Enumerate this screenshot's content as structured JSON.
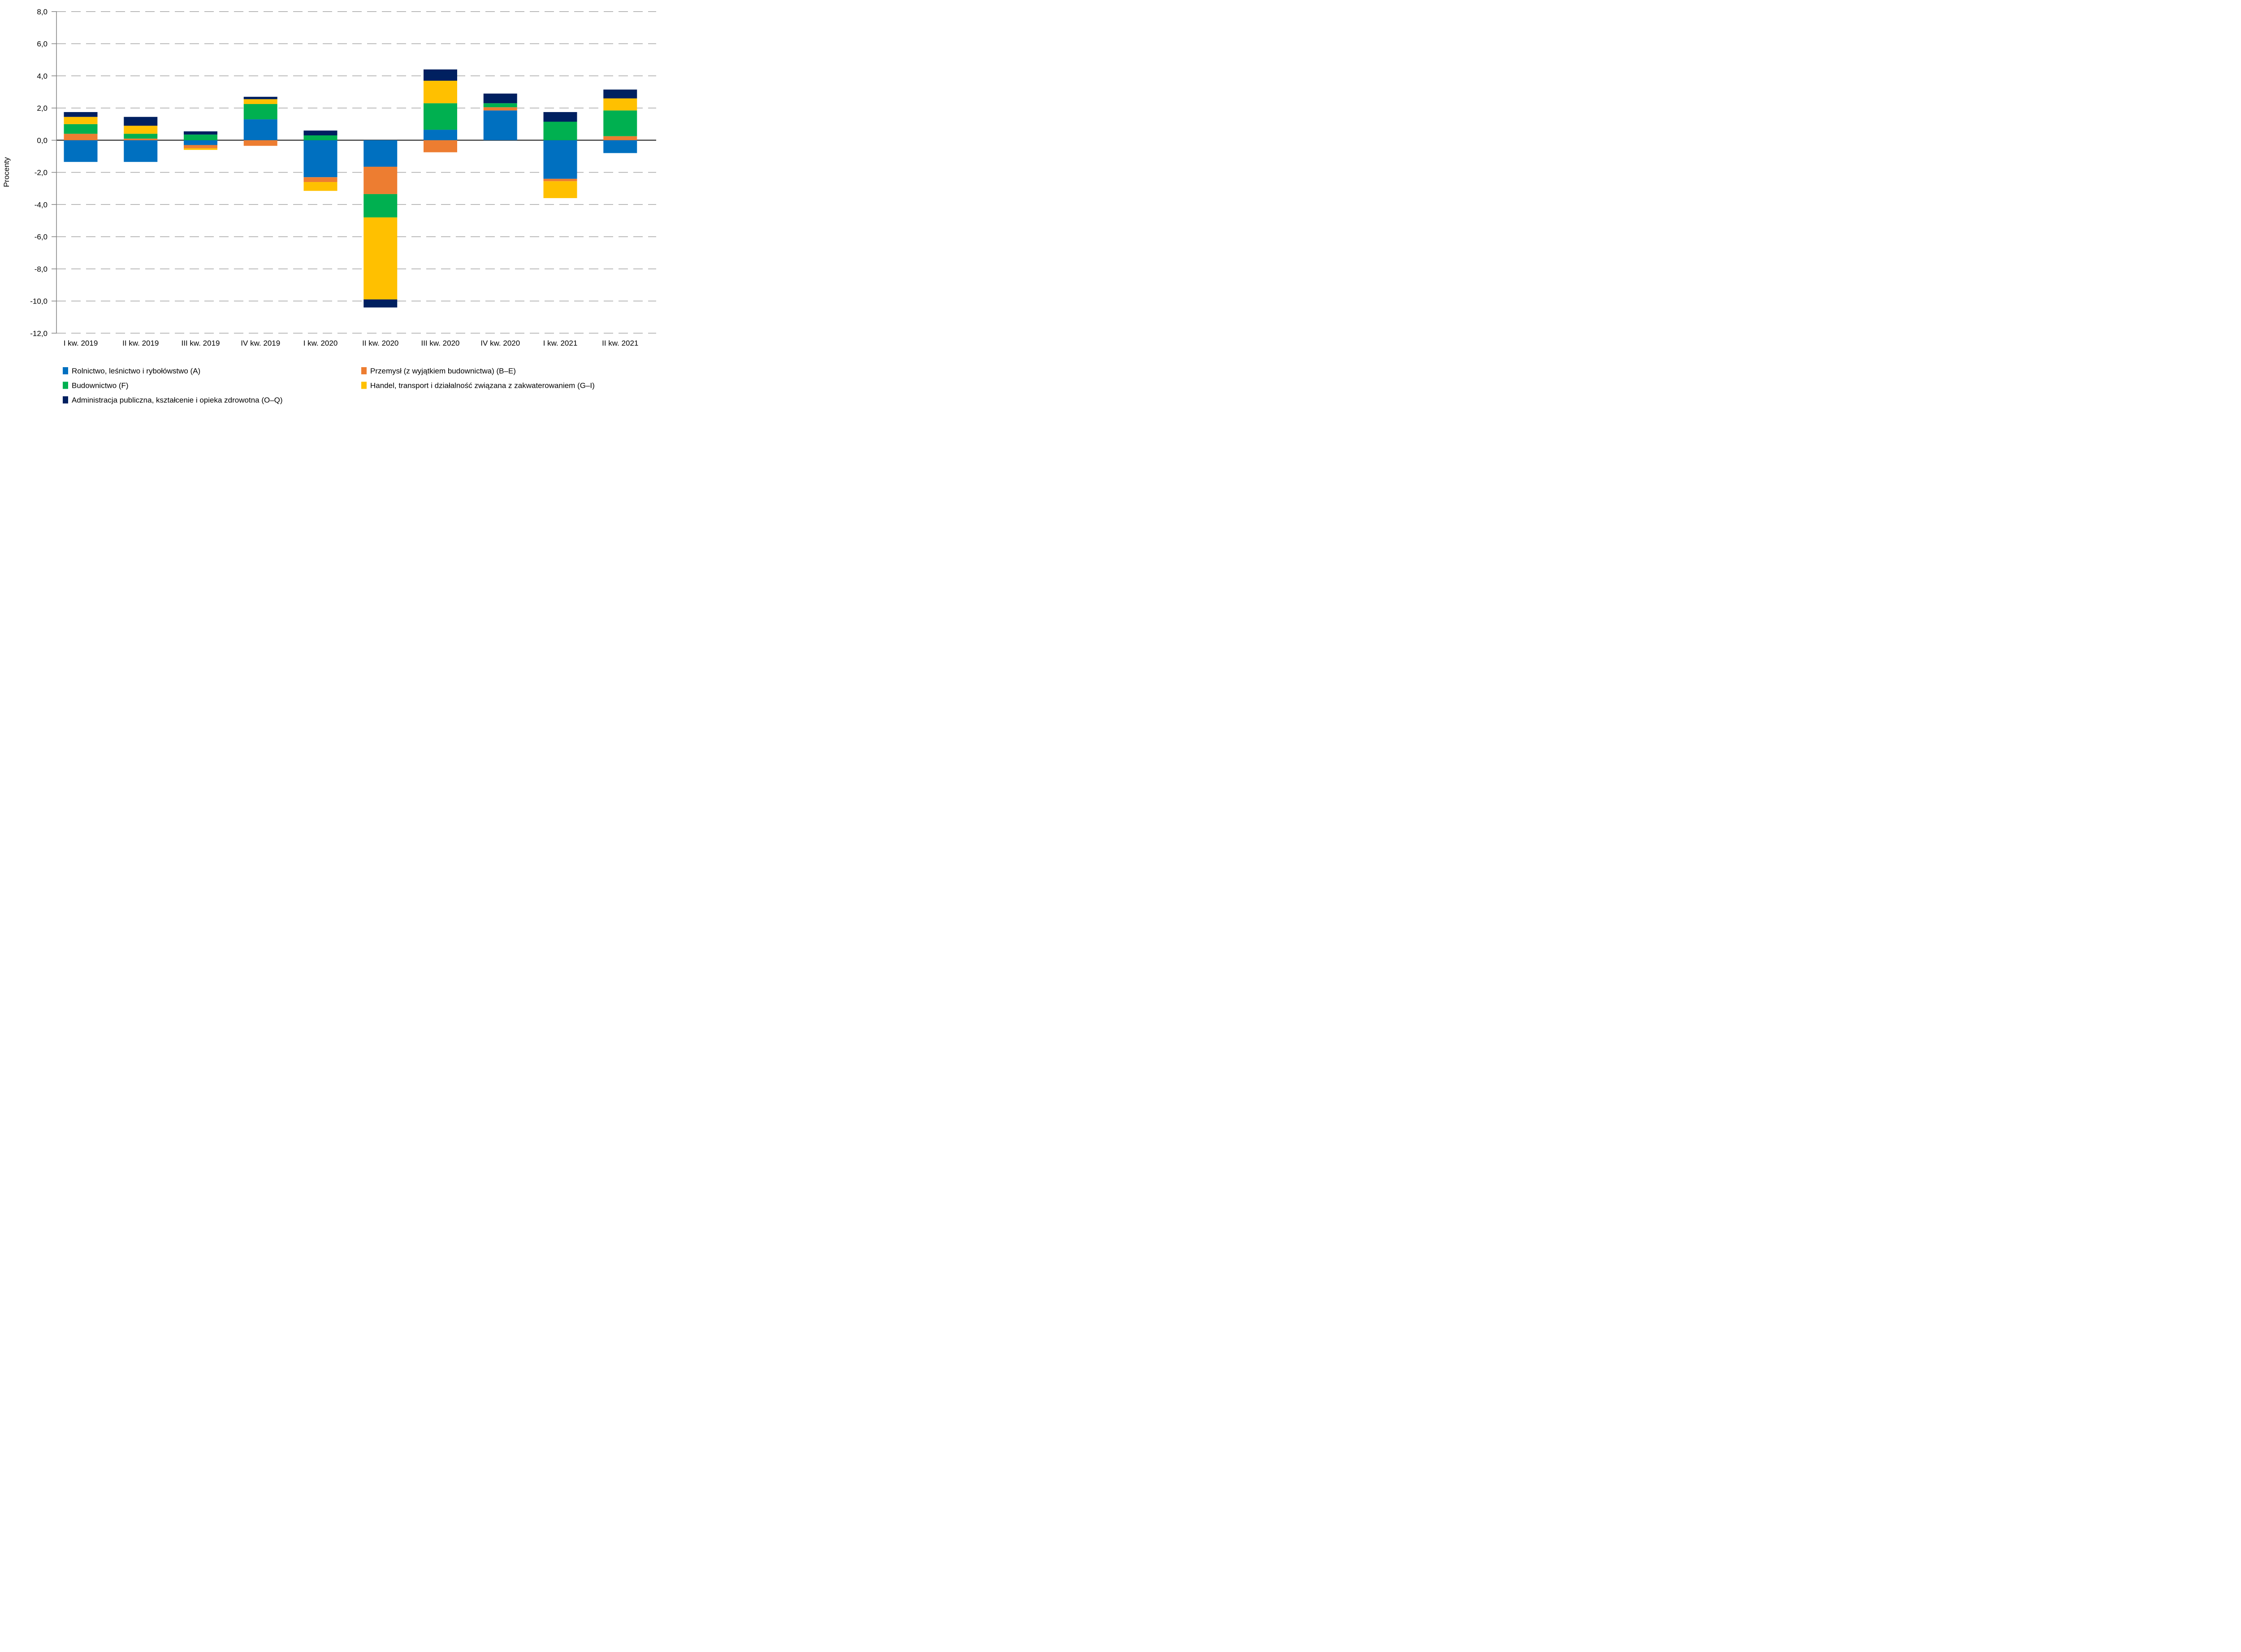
{
  "chart_data": {
    "type": "bar",
    "stacked": true,
    "title": "",
    "ylabel": "Procenty",
    "xlabel": "",
    "ylim": [
      -12.0,
      8.0
    ],
    "ytick_step": 2.0,
    "decimal_separator": ",",
    "grid": "horizontal-dashed",
    "legend_position": "bottom",
    "y_tick_labels": [
      "8,0",
      "6,0",
      "4,0",
      "2,0",
      "0,0",
      "-2,0",
      "-4,0",
      "-6,0",
      "-8,0",
      "-10,0",
      "-12,0"
    ],
    "categories": [
      "I kw. 2019",
      "II kw. 2019",
      "III kw. 2019",
      "IV kw. 2019",
      "I kw. 2020",
      "II kw. 2020",
      "III kw. 2020",
      "IV kw. 2020",
      "I kw. 2021",
      "II kw. 2021"
    ],
    "series": [
      {
        "name": "Rolnictwo, leśnictwo i rybołówstwo (A)",
        "color": "#0070C0",
        "values": [
          -1.35,
          -1.35,
          -0.3,
          1.3,
          -2.3,
          -1.65,
          0.65,
          1.85,
          -2.4,
          -0.8
        ]
      },
      {
        "name": "Przemysł (z wyjątkiem budownictwa) (B–E)",
        "color": "#ED7D31",
        "values": [
          0.4,
          0.1,
          -0.2,
          -0.35,
          -0.3,
          -1.7,
          -0.75,
          0.2,
          -0.15,
          0.25
        ]
      },
      {
        "name": "Budownictwo (F)",
        "color": "#00B050",
        "values": [
          0.6,
          0.3,
          0.35,
          0.95,
          0.3,
          -1.45,
          1.65,
          0.25,
          1.15,
          1.6
        ]
      },
      {
        "name": "Handel, transport i działalność związana z zakwaterowaniem (G–I)",
        "color": "#FFC000",
        "values": [
          0.45,
          0.5,
          -0.1,
          0.3,
          -0.55,
          -5.1,
          1.4,
          0.0,
          -1.05,
          0.75
        ]
      },
      {
        "name": "Administracja publiczna, kształcenie i opieka zdrowotna (O–Q)",
        "color": "#002060",
        "values": [
          0.3,
          0.55,
          0.2,
          0.15,
          0.3,
          -0.5,
          0.7,
          0.6,
          0.6,
          0.55
        ]
      }
    ]
  },
  "styles": {
    "background": "#FFFFFF",
    "gridline_color": "#A6A6A6",
    "zero_line_color": "#3F3F3F",
    "y_axis_color": "#808080",
    "text_color": "#000000"
  }
}
